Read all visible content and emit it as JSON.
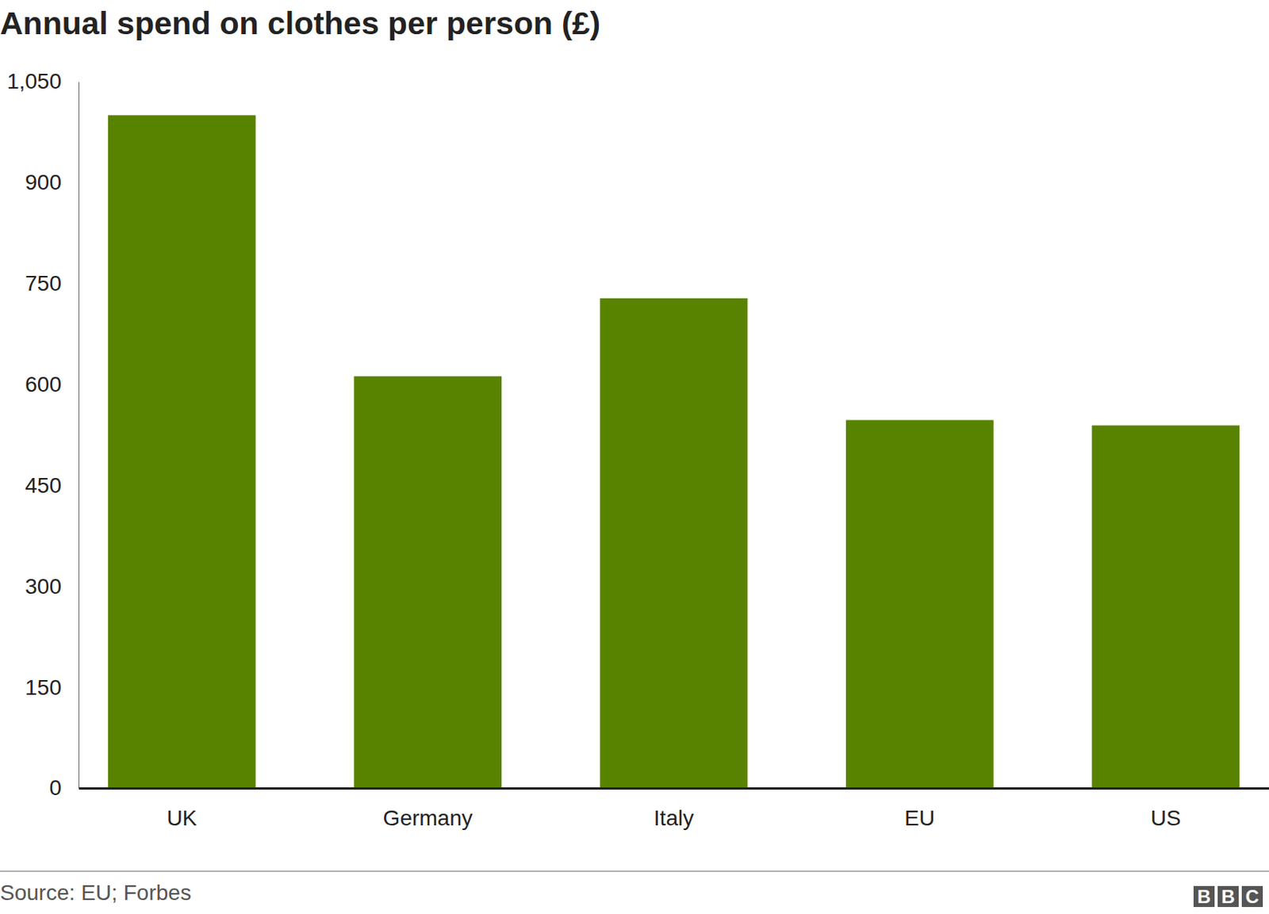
{
  "chart_data": {
    "type": "bar",
    "title": "Annual spend on clothes per person (£)",
    "categories": [
      "UK",
      "Germany",
      "Italy",
      "EU",
      "US"
    ],
    "values": [
      1000,
      612,
      728,
      547,
      539
    ],
    "color": "#588300",
    "ylim": [
      0,
      1050
    ],
    "yticks": [
      0,
      150,
      300,
      450,
      600,
      750,
      900,
      {
        "value": 1050,
        "label": "1,050"
      }
    ],
    "grid": false,
    "source": "Source: EU; Forbes",
    "logo": "BBC"
  }
}
